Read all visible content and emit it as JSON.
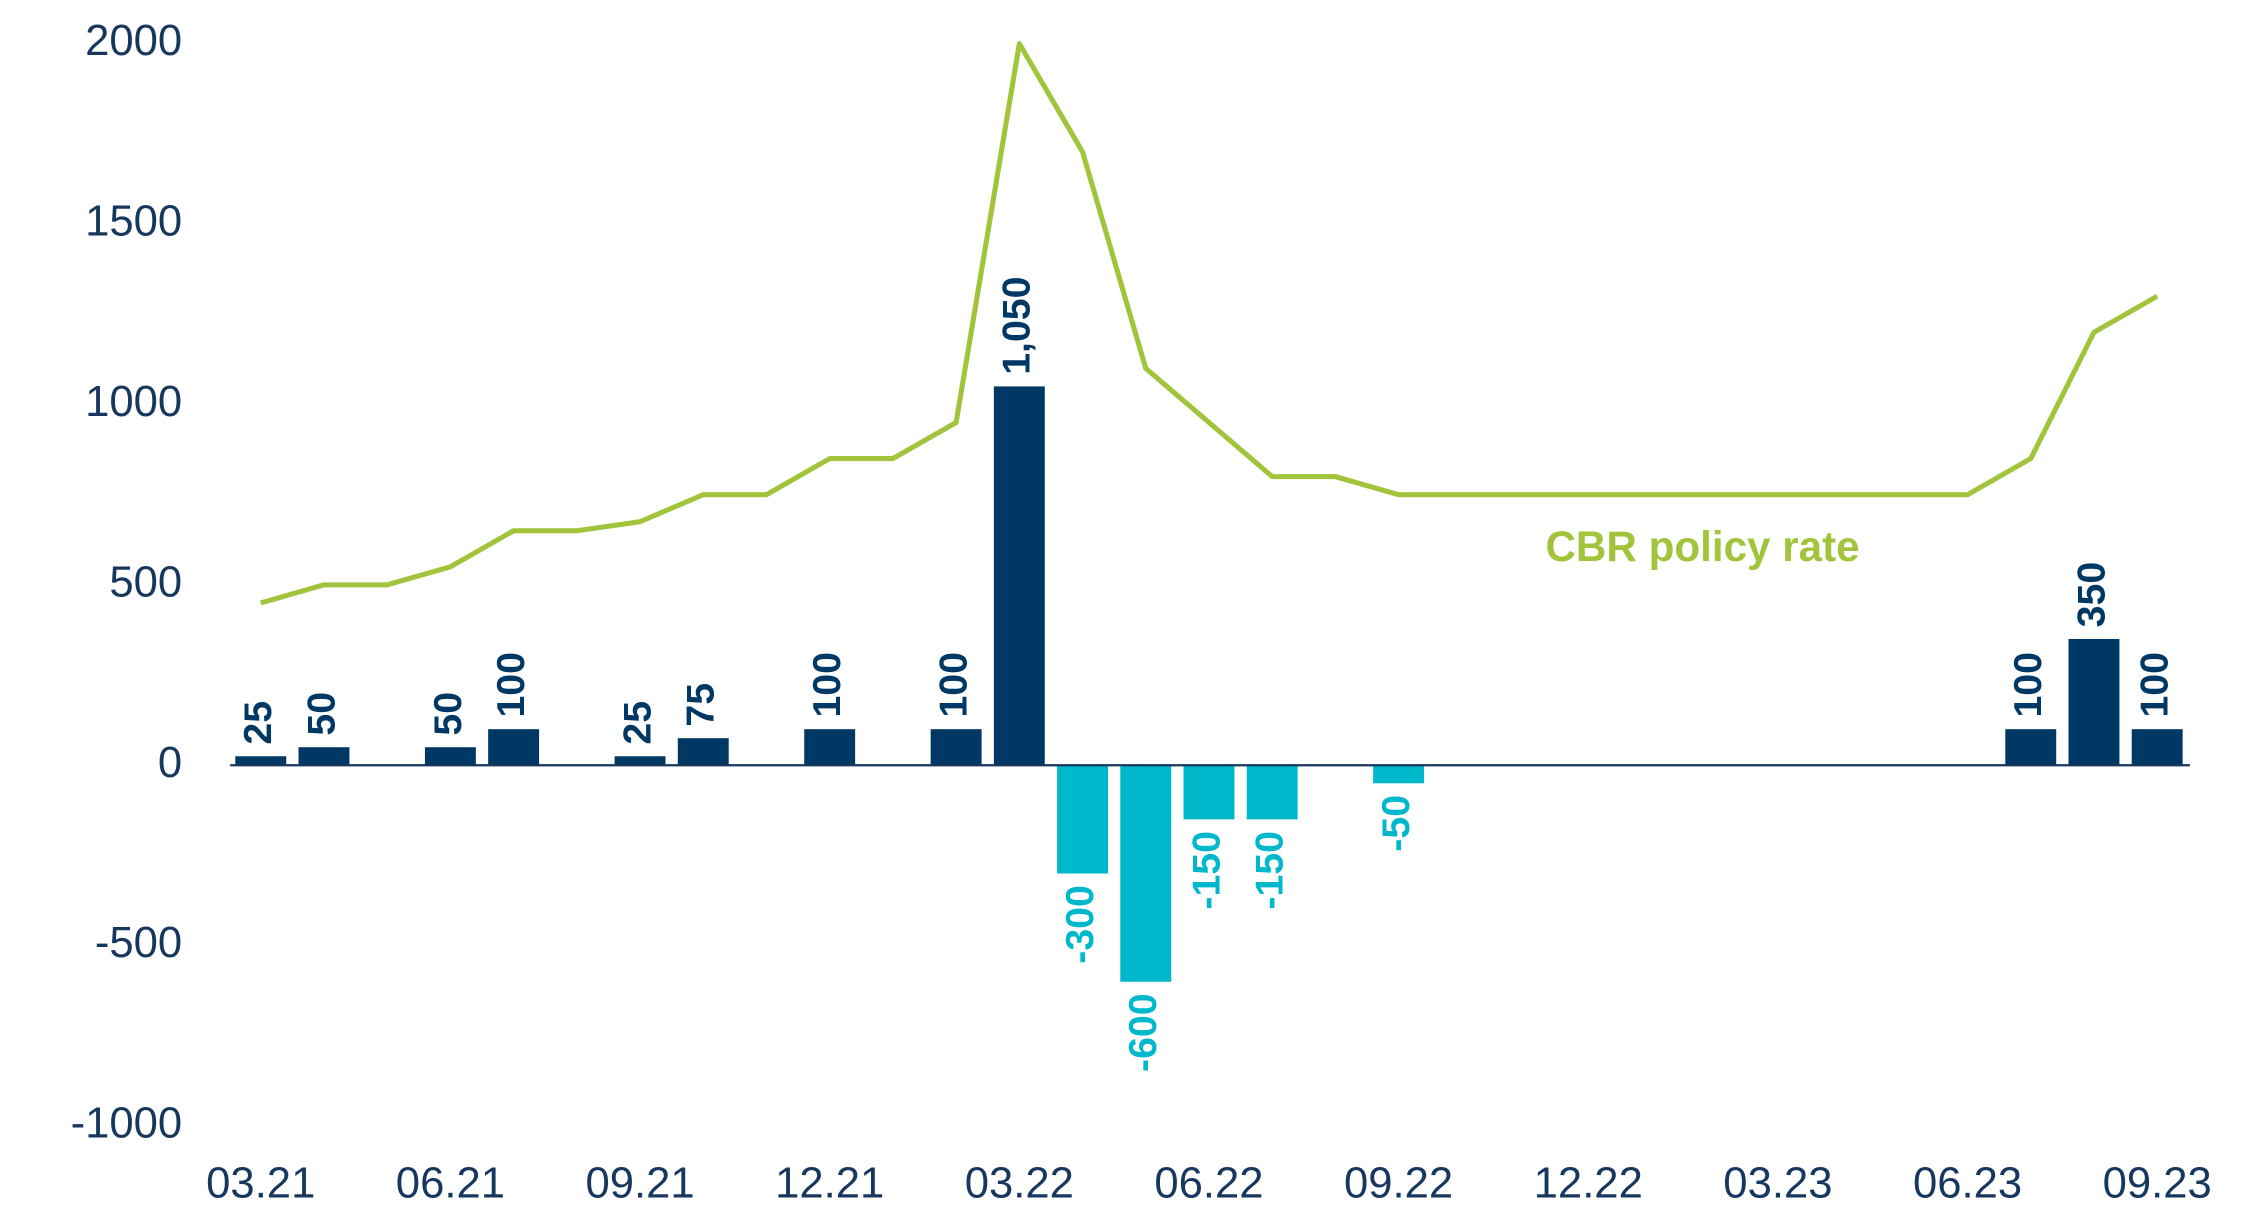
{
  "chart_data": {
    "type": "bar",
    "categories": [
      "03.21",
      null,
      null,
      "06.21",
      null,
      null,
      "09.21",
      null,
      null,
      "12.21",
      null,
      null,
      "03.22",
      null,
      null,
      "06.22",
      null,
      null,
      "09.22",
      null,
      null,
      "12.22",
      null,
      null,
      "03.23",
      null,
      null,
      "06.23",
      null,
      null,
      "09.23"
    ],
    "values": [
      25,
      50,
      null,
      50,
      100,
      null,
      25,
      75,
      null,
      100,
      null,
      100,
      1050,
      -300,
      -600,
      -150,
      -150,
      null,
      -50,
      null,
      null,
      null,
      null,
      null,
      null,
      null,
      null,
      null,
      100,
      350,
      100
    ],
    "value_labels": [
      "25",
      "50",
      null,
      "50",
      "100",
      null,
      "25",
      "75",
      null,
      "100",
      null,
      "100",
      "1,050",
      "-300",
      "-600",
      "-150",
      "-150",
      null,
      "-50",
      null,
      null,
      null,
      null,
      null,
      null,
      null,
      null,
      null,
      "100",
      "350",
      "100"
    ],
    "color_positive": "#003865",
    "color_negative": "#00b8cc",
    "line": {
      "name": "CBR policy rate",
      "color": "#a2c43c",
      "values": [
        450,
        500,
        500,
        550,
        650,
        650,
        675,
        750,
        750,
        850,
        850,
        950,
        2000,
        1700,
        1100,
        950,
        800,
        800,
        750,
        750,
        750,
        750,
        750,
        750,
        750,
        750,
        750,
        750,
        850,
        1200,
        1300
      ]
    },
    "ylim": [
      -1000,
      2000
    ],
    "yticks": [
      -1000,
      -500,
      0,
      500,
      1000,
      1500,
      2000
    ]
  }
}
